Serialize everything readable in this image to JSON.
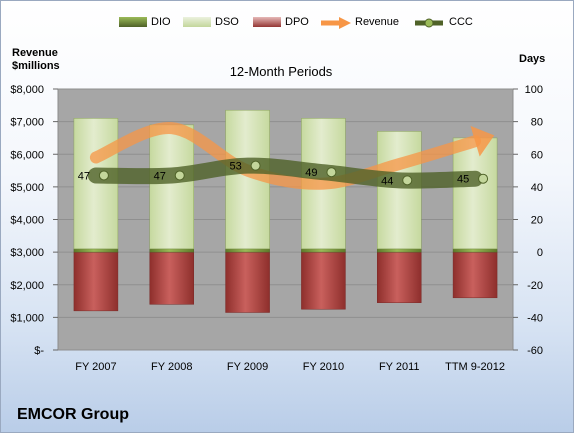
{
  "legend": {
    "dio": "DIO",
    "dso": "DSO",
    "dpo": "DPO",
    "revenue": "Revenue",
    "ccc": "CCC"
  },
  "axis": {
    "left_title_line1": "Revenue",
    "left_title_line2": "$millions",
    "right_title": "Days"
  },
  "subtitle": "12-Month Periods",
  "company": "EMCOR Group",
  "colors": {
    "dio": "#76923c",
    "dso": "#d7e4bd",
    "dpo": "#c0504d",
    "revenue": "#f79646",
    "ccc": "#4f6228",
    "plot_bg": "#a6a6a6"
  },
  "chart_data": {
    "type": "bar",
    "categories": [
      "FY 2007",
      "FY 2008",
      "FY 2009",
      "FY 2010",
      "FY 2011",
      "TTM 9-2012"
    ],
    "left_axis": {
      "min": 0,
      "max": 8000,
      "step": 1000,
      "tick_labels": [
        "$-",
        "$1,000",
        "$2,000",
        "$3,000",
        "$4,000",
        "$5,000",
        "$6,000",
        "$7,000",
        "$8,000"
      ]
    },
    "right_axis": {
      "min": -60,
      "max": 100,
      "step": 20,
      "tick_labels": [
        "-60",
        "-40",
        "-20",
        "0",
        "20",
        "40",
        "60",
        "80",
        "100"
      ]
    },
    "series": [
      {
        "name": "DIO",
        "axis": "right",
        "kind": "stacked-bar",
        "values": [
          2,
          2,
          2,
          2,
          2,
          2
        ]
      },
      {
        "name": "DSO",
        "axis": "right",
        "kind": "stacked-bar",
        "values": [
          80,
          76,
          85,
          80,
          72,
          68
        ]
      },
      {
        "name": "DPO",
        "axis": "right",
        "kind": "negative-bar",
        "values": [
          -36,
          -32,
          -37,
          -35,
          -31,
          -28
        ]
      },
      {
        "name": "Revenue",
        "axis": "left",
        "kind": "arrow-line",
        "values": [
          5900,
          6800,
          5500,
          5100,
          5700,
          6400
        ]
      },
      {
        "name": "CCC",
        "axis": "right",
        "kind": "line",
        "values": [
          47,
          47,
          53,
          49,
          44,
          45
        ],
        "labels": [
          "47",
          "47",
          "53",
          "49",
          "44",
          "45"
        ]
      }
    ],
    "grid": "horizontal"
  }
}
